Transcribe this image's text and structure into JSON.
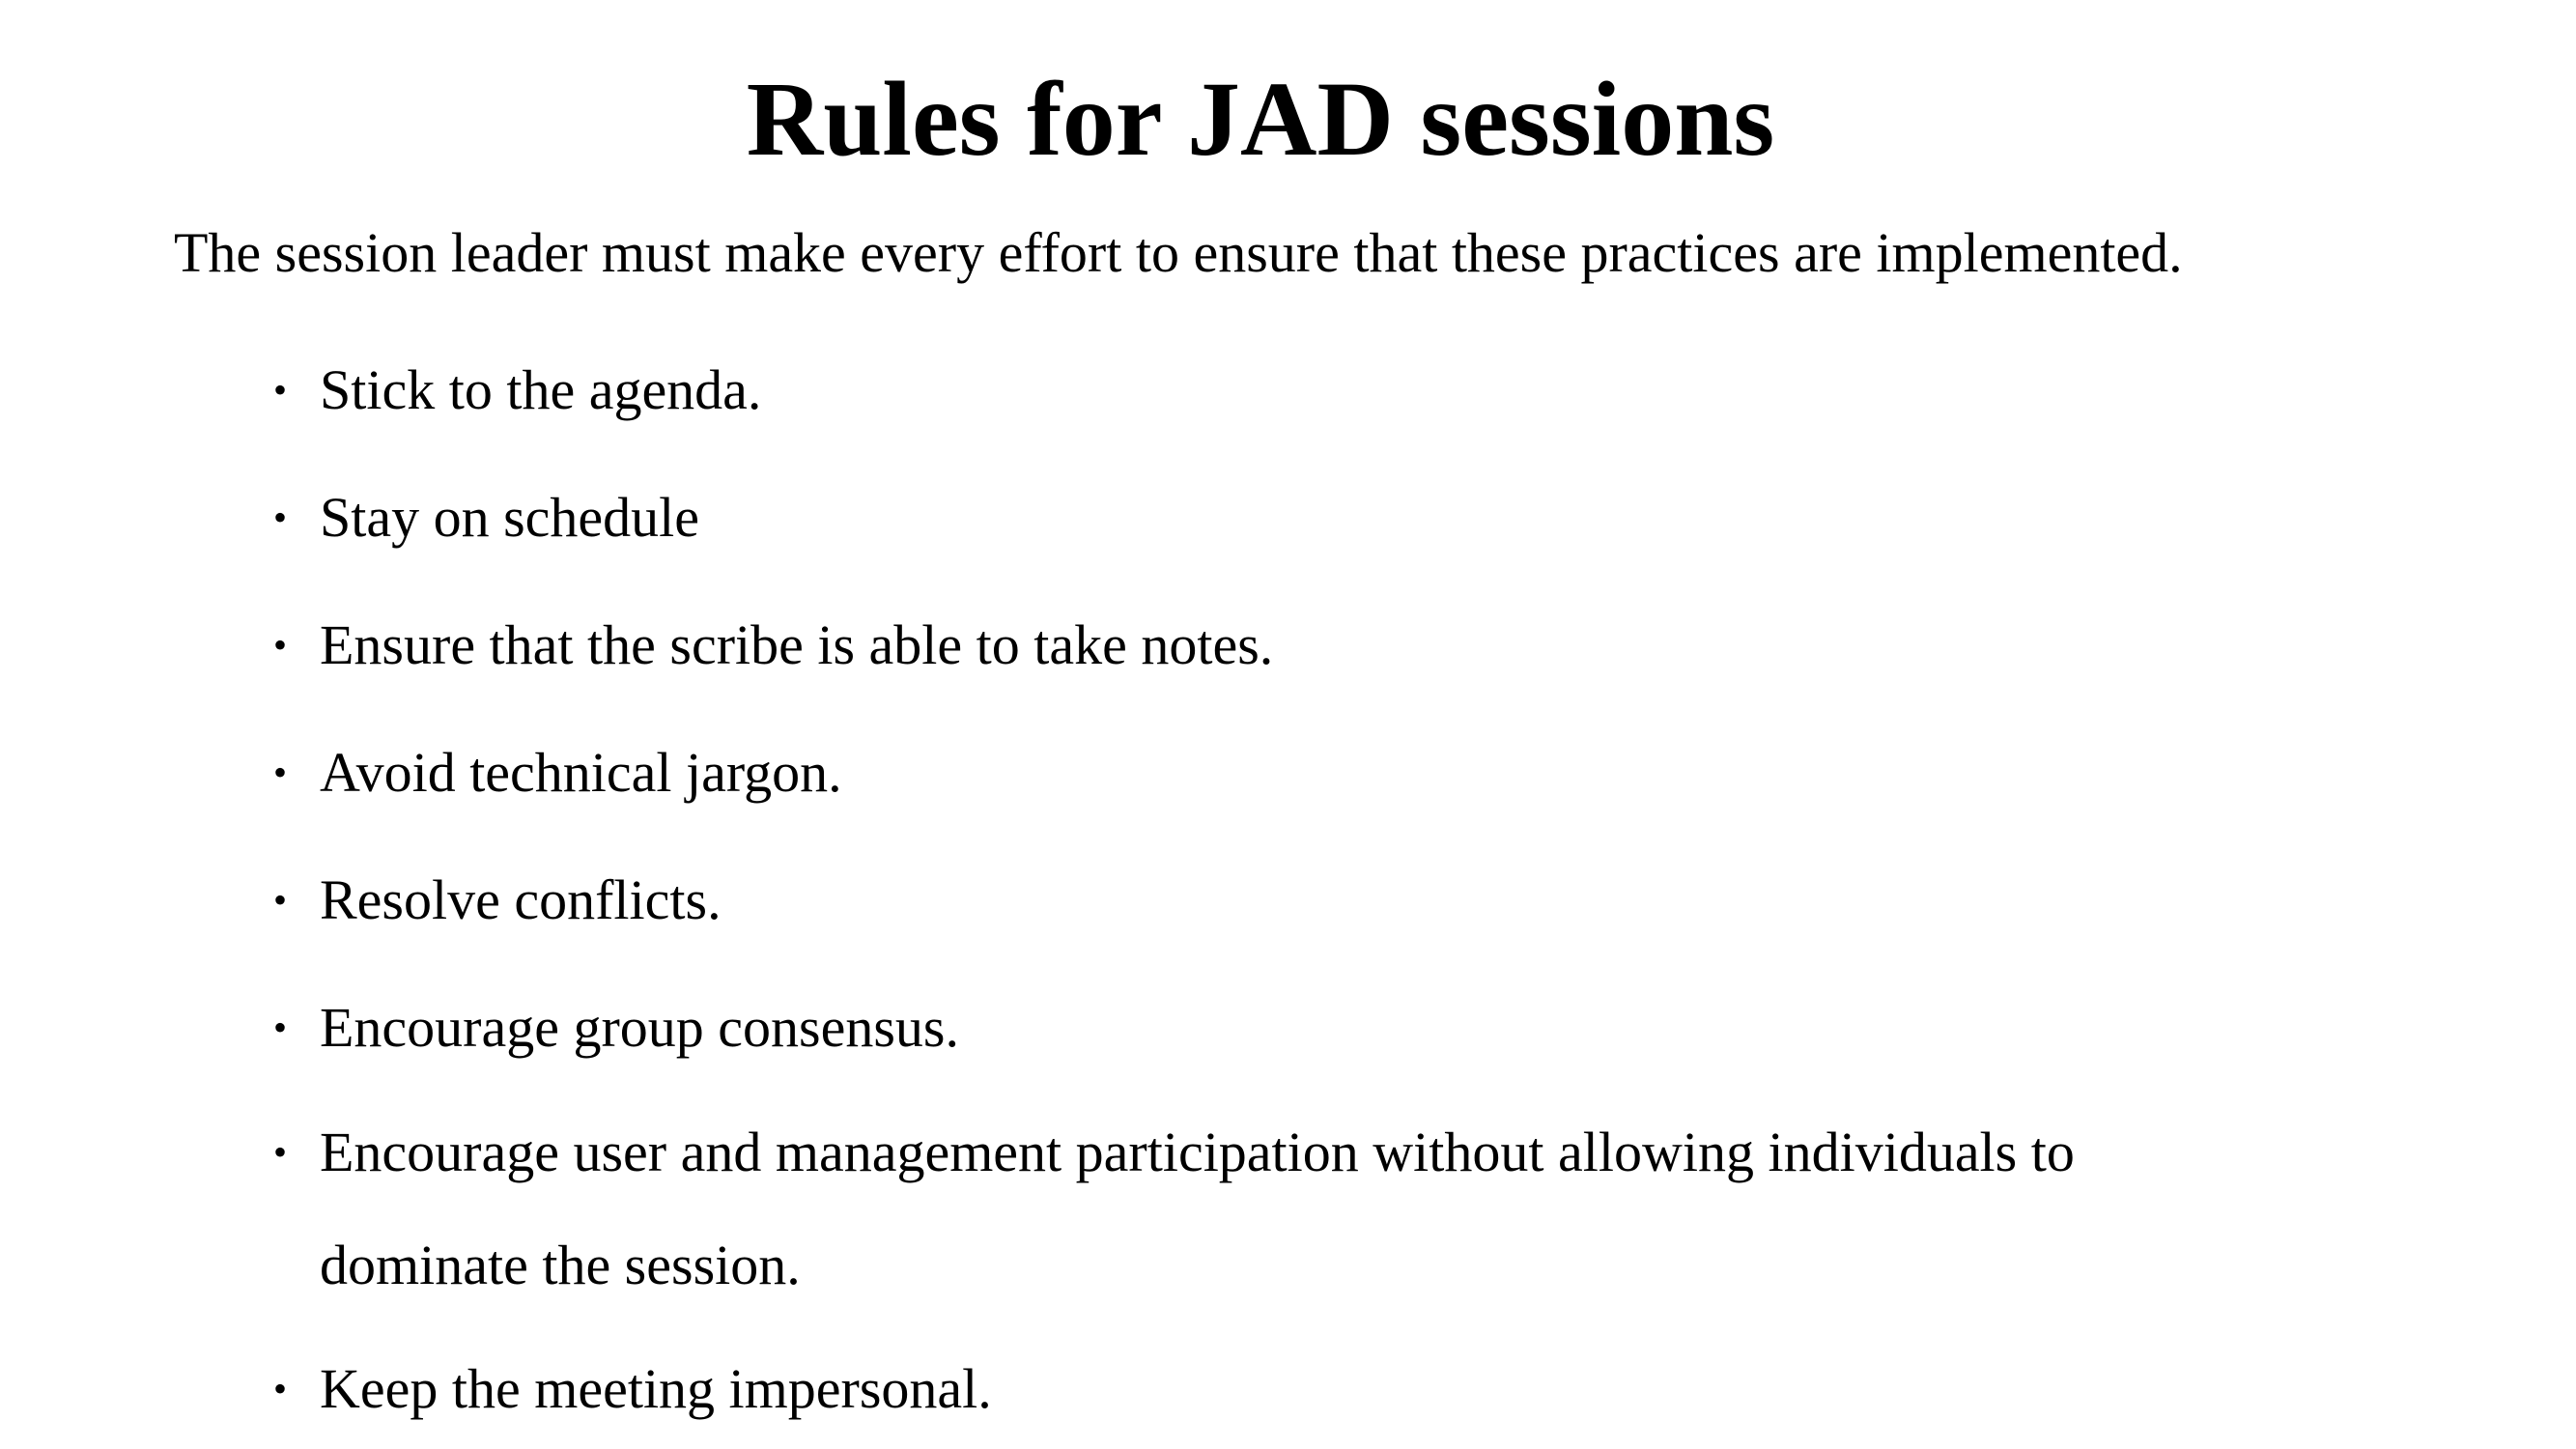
{
  "slide": {
    "title": "Rules for JAD sessions",
    "intro": "The session leader must make every effort to ensure that these practices are implemented.",
    "bullet_symbol": "•",
    "bullets": [
      "Stick to the agenda.",
      "Stay on schedule",
      "Ensure that the scribe is able to take notes.",
      "Avoid technical jargon.",
      "Resolve conflicts.",
      "Encourage group consensus.",
      "Encourage user and management participation without allowing individuals to dominate the session.",
      "Keep the meeting impersonal."
    ]
  }
}
